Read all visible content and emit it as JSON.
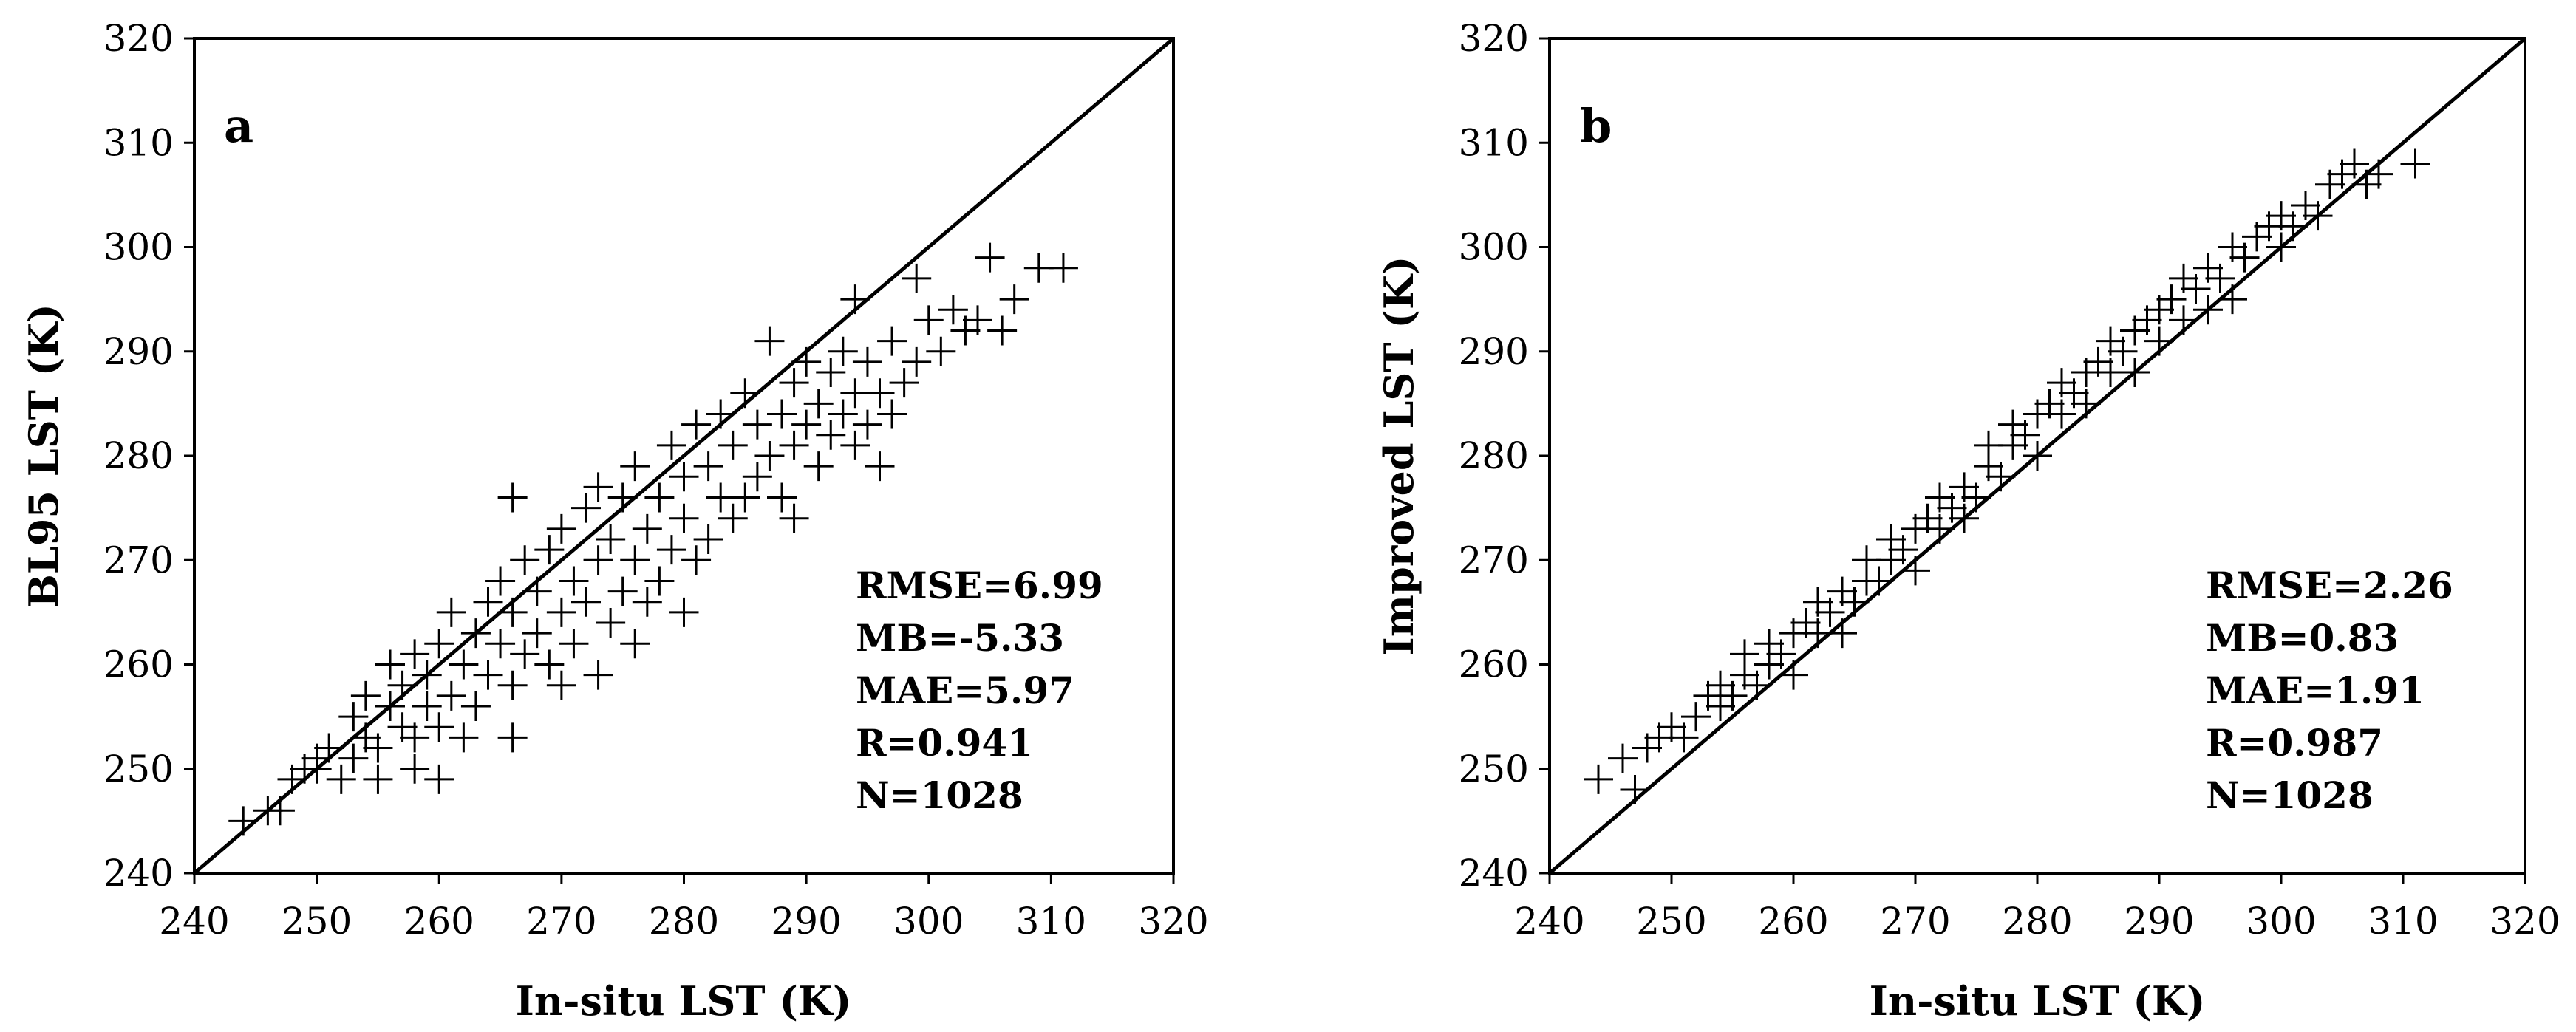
{
  "chart_data": [
    {
      "type": "scatter",
      "panel_label": "a",
      "xlabel": "In-situ LST (K)",
      "ylabel": "BL95 LST (K)",
      "xlim": [
        240,
        320
      ],
      "ylim": [
        240,
        320
      ],
      "xticks": [
        "240",
        "250",
        "260",
        "270",
        "280",
        "290",
        "300",
        "310",
        "320"
      ],
      "yticks": [
        "240",
        "250",
        "260",
        "270",
        "280",
        "290",
        "300",
        "310",
        "320"
      ],
      "reference_line": "1:1",
      "marker": "plus",
      "stats": [
        "RMSE=6.99",
        "MB=-5.33",
        "MAE=5.97",
        "R=0.941",
        "N=1028"
      ],
      "points": [
        [
          244,
          245
        ],
        [
          246,
          246
        ],
        [
          247,
          246
        ],
        [
          248,
          249
        ],
        [
          249,
          250
        ],
        [
          250,
          250
        ],
        [
          250,
          251
        ],
        [
          251,
          252
        ],
        [
          252,
          249
        ],
        [
          253,
          251
        ],
        [
          253,
          255
        ],
        [
          254,
          253
        ],
        [
          254,
          257
        ],
        [
          255,
          249
        ],
        [
          255,
          252
        ],
        [
          256,
          256
        ],
        [
          256,
          260
        ],
        [
          257,
          254
        ],
        [
          257,
          258
        ],
        [
          258,
          250
        ],
        [
          258,
          253
        ],
        [
          258,
          261
        ],
        [
          259,
          256
        ],
        [
          259,
          259
        ],
        [
          260,
          249
        ],
        [
          260,
          254
        ],
        [
          260,
          262
        ],
        [
          261,
          257
        ],
        [
          261,
          265
        ],
        [
          262,
          253
        ],
        [
          262,
          260
        ],
        [
          263,
          256
        ],
        [
          263,
          263
        ],
        [
          264,
          259
        ],
        [
          264,
          266
        ],
        [
          265,
          262
        ],
        [
          265,
          268
        ],
        [
          266,
          253
        ],
        [
          266,
          258
        ],
        [
          266,
          265
        ],
        [
          266,
          276
        ],
        [
          267,
          261
        ],
        [
          267,
          270
        ],
        [
          268,
          263
        ],
        [
          268,
          267
        ],
        [
          269,
          260
        ],
        [
          269,
          271
        ],
        [
          270,
          258
        ],
        [
          270,
          265
        ],
        [
          270,
          273
        ],
        [
          271,
          262
        ],
        [
          271,
          268
        ],
        [
          272,
          266
        ],
        [
          272,
          275
        ],
        [
          273,
          259
        ],
        [
          273,
          270
        ],
        [
          273,
          277
        ],
        [
          274,
          264
        ],
        [
          274,
          272
        ],
        [
          275,
          267
        ],
        [
          275,
          276
        ],
        [
          276,
          262
        ],
        [
          276,
          270
        ],
        [
          276,
          279
        ],
        [
          277,
          266
        ],
        [
          277,
          273
        ],
        [
          278,
          268
        ],
        [
          278,
          276
        ],
        [
          279,
          271
        ],
        [
          279,
          281
        ],
        [
          280,
          265
        ],
        [
          280,
          274
        ],
        [
          280,
          278
        ],
        [
          281,
          270
        ],
        [
          281,
          283
        ],
        [
          282,
          272
        ],
        [
          282,
          279
        ],
        [
          283,
          276
        ],
        [
          283,
          284
        ],
        [
          284,
          274
        ],
        [
          284,
          281
        ],
        [
          285,
          276
        ],
        [
          285,
          286
        ],
        [
          286,
          278
        ],
        [
          286,
          283
        ],
        [
          287,
          280
        ],
        [
          287,
          291
        ],
        [
          288,
          276
        ],
        [
          288,
          284
        ],
        [
          289,
          274
        ],
        [
          289,
          281
        ],
        [
          289,
          287
        ],
        [
          290,
          283
        ],
        [
          290,
          289
        ],
        [
          291,
          279
        ],
        [
          291,
          285
        ],
        [
          292,
          282
        ],
        [
          292,
          288
        ],
        [
          293,
          284
        ],
        [
          293,
          290
        ],
        [
          294,
          281
        ],
        [
          294,
          286
        ],
        [
          294,
          295
        ],
        [
          295,
          283
        ],
        [
          295,
          289
        ],
        [
          296,
          279
        ],
        [
          296,
          286
        ],
        [
          297,
          284
        ],
        [
          297,
          291
        ],
        [
          298,
          287
        ],
        [
          299,
          289
        ],
        [
          299,
          297
        ],
        [
          300,
          293
        ],
        [
          301,
          290
        ],
        [
          302,
          294
        ],
        [
          303,
          292
        ],
        [
          304,
          293
        ],
        [
          305,
          299
        ],
        [
          306,
          292
        ],
        [
          307,
          295
        ],
        [
          309,
          298
        ],
        [
          311,
          298
        ]
      ]
    },
    {
      "type": "scatter",
      "panel_label": "b",
      "xlabel": "In-situ LST (K)",
      "ylabel": "Improved LST (K)",
      "xlim": [
        240,
        320
      ],
      "ylim": [
        240,
        320
      ],
      "xticks": [
        "240",
        "250",
        "260",
        "270",
        "280",
        "290",
        "300",
        "310",
        "320"
      ],
      "yticks": [
        "240",
        "250",
        "260",
        "270",
        "280",
        "290",
        "300",
        "310",
        "320"
      ],
      "reference_line": "1:1",
      "marker": "plus",
      "stats": [
        "RMSE=2.26",
        "MB=0.83",
        "MAE=1.91",
        "R=0.987",
        "N=1028"
      ],
      "points": [
        [
          244,
          249
        ],
        [
          246,
          251
        ],
        [
          247,
          248
        ],
        [
          248,
          252
        ],
        [
          249,
          253
        ],
        [
          250,
          254
        ],
        [
          251,
          253
        ],
        [
          252,
          255
        ],
        [
          253,
          257
        ],
        [
          254,
          256
        ],
        [
          254,
          258
        ],
        [
          255,
          257
        ],
        [
          256,
          259
        ],
        [
          256,
          261
        ],
        [
          257,
          258
        ],
        [
          258,
          260
        ],
        [
          258,
          262
        ],
        [
          259,
          261
        ],
        [
          260,
          263
        ],
        [
          260,
          259
        ],
        [
          261,
          264
        ],
        [
          262,
          263
        ],
        [
          262,
          266
        ],
        [
          263,
          265
        ],
        [
          264,
          267
        ],
        [
          264,
          263
        ],
        [
          265,
          266
        ],
        [
          266,
          268
        ],
        [
          266,
          270
        ],
        [
          267,
          268
        ],
        [
          268,
          270
        ],
        [
          268,
          272
        ],
        [
          269,
          271
        ],
        [
          270,
          273
        ],
        [
          270,
          269
        ],
        [
          271,
          274
        ],
        [
          272,
          273
        ],
        [
          272,
          276
        ],
        [
          273,
          275
        ],
        [
          274,
          277
        ],
        [
          274,
          274
        ],
        [
          275,
          276
        ],
        [
          276,
          279
        ],
        [
          276,
          281
        ],
        [
          277,
          278
        ],
        [
          278,
          281
        ],
        [
          278,
          283
        ],
        [
          279,
          282
        ],
        [
          280,
          284
        ],
        [
          280,
          280
        ],
        [
          281,
          285
        ],
        [
          282,
          284
        ],
        [
          282,
          287
        ],
        [
          283,
          286
        ],
        [
          284,
          288
        ],
        [
          284,
          285
        ],
        [
          285,
          289
        ],
        [
          286,
          288
        ],
        [
          286,
          291
        ],
        [
          287,
          290
        ],
        [
          288,
          292
        ],
        [
          288,
          288
        ],
        [
          289,
          293
        ],
        [
          290,
          291
        ],
        [
          290,
          294
        ],
        [
          291,
          295
        ],
        [
          292,
          293
        ],
        [
          292,
          297
        ],
        [
          293,
          296
        ],
        [
          294,
          298
        ],
        [
          294,
          294
        ],
        [
          295,
          297
        ],
        [
          296,
          295
        ],
        [
          296,
          300
        ],
        [
          297,
          299
        ],
        [
          298,
          301
        ],
        [
          299,
          302
        ],
        [
          300,
          300
        ],
        [
          300,
          303
        ],
        [
          301,
          302
        ],
        [
          302,
          304
        ],
        [
          303,
          303
        ],
        [
          304,
          306
        ],
        [
          305,
          307
        ],
        [
          306,
          308
        ],
        [
          307,
          306
        ],
        [
          308,
          307
        ],
        [
          311,
          308
        ]
      ]
    }
  ]
}
